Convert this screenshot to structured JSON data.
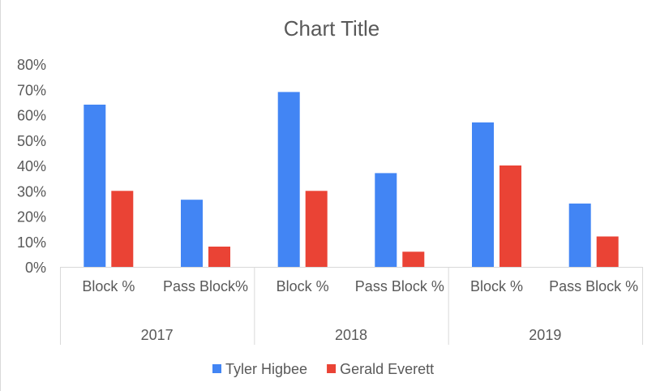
{
  "chart_data": {
    "type": "bar",
    "title": "Chart Title",
    "groups": [
      {
        "label": "2017",
        "categories": [
          "Block %",
          "Pass Block%"
        ]
      },
      {
        "label": "2018",
        "categories": [
          "Block %",
          "Pass Block %"
        ]
      },
      {
        "label": "2019",
        "categories": [
          "Block %",
          "Pass Block %"
        ]
      }
    ],
    "series": [
      {
        "name": "Tyler Higbee",
        "color": "#4285F4",
        "values": [
          0.64,
          0.265,
          0.69,
          0.37,
          0.57,
          0.25
        ]
      },
      {
        "name": "Gerald Everett",
        "color": "#EA4335",
        "values": [
          0.3,
          0.08,
          0.3,
          0.06,
          0.4,
          0.12
        ]
      }
    ],
    "yticks": [
      "0%",
      "10%",
      "20%",
      "30%",
      "40%",
      "50%",
      "60%",
      "70%",
      "80%"
    ],
    "ylim": [
      0,
      0.8
    ],
    "grid": false,
    "legend_position": "bottom"
  }
}
